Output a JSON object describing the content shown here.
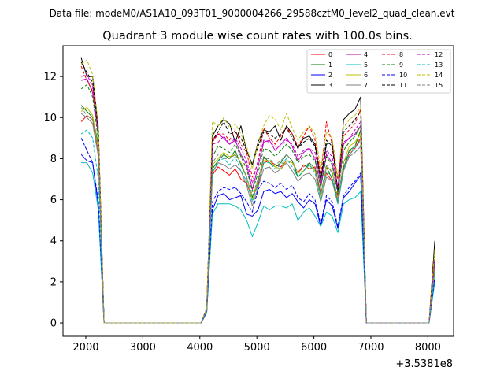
{
  "header": {
    "data_file": "Data file: modeM0/AS1A10_093T01_9000004266_29588cztM0_level2_quad_clean.evt"
  },
  "chart_data": {
    "type": "line",
    "title": "Quadrant 3 module wise count rates with 100.0s bins.",
    "xlabel": "",
    "ylabel": "",
    "x_offset_label": "+3.5381e8",
    "xlim": [
      1600,
      8450
    ],
    "ylim": [
      -0.65,
      13.5
    ],
    "xticks": [
      2000,
      3000,
      4000,
      5000,
      6000,
      7000,
      8000
    ],
    "yticks": [
      0,
      2,
      4,
      6,
      8,
      10,
      12
    ],
    "grid": false,
    "legend_placement": "top-right",
    "x": [
      1920,
      2020,
      2120,
      2220,
      2320,
      2420,
      2520,
      2620,
      2720,
      2820,
      2920,
      3020,
      3120,
      3220,
      3320,
      3420,
      3520,
      3620,
      3720,
      3820,
      3920,
      4020,
      4120,
      4220,
      4320,
      4420,
      4520,
      4620,
      4720,
      4820,
      4920,
      5020,
      5120,
      5220,
      5320,
      5420,
      5520,
      5620,
      5720,
      5820,
      5920,
      6020,
      6120,
      6220,
      6320,
      6420,
      6520,
      6620,
      6720,
      6820,
      6920,
      7020,
      7120,
      7220,
      7320,
      7420,
      7520,
      7620,
      7720,
      7820,
      7920,
      8020,
      8120
    ],
    "series": [
      {
        "name": "0",
        "color": "#ff0000",
        "dash": false,
        "values": [
          9.8,
          10.1,
          9.9,
          8.3,
          0,
          0,
          0,
          0,
          0,
          0,
          0,
          0,
          0,
          0,
          0,
          0,
          0,
          0,
          0,
          0,
          0,
          0,
          0.6,
          7.2,
          7.6,
          7.4,
          7.2,
          7.5,
          7.0,
          6.8,
          6.1,
          6.7,
          7.8,
          7.9,
          7.7,
          7.6,
          7.9,
          7.8,
          7.3,
          7.7,
          7.5,
          7.6,
          6.3,
          7.3,
          6.9,
          6.2,
          7.6,
          8.2,
          8.5,
          9.0,
          0,
          0,
          0,
          0,
          0,
          0,
          0,
          0,
          0,
          0,
          0,
          0,
          2.6
        ]
      },
      {
        "name": "1",
        "color": "#008000",
        "dash": false,
        "values": [
          10.6,
          10.3,
          10.0,
          8.7,
          0,
          0,
          0,
          0,
          0,
          0,
          0,
          0,
          0,
          0,
          0,
          0,
          0,
          0,
          0,
          0,
          0,
          0,
          0.6,
          7.5,
          7.9,
          8.2,
          8.0,
          8.4,
          7.7,
          7.1,
          6.1,
          6.9,
          8.1,
          7.8,
          7.6,
          7.8,
          8.2,
          7.9,
          7.1,
          7.4,
          7.8,
          7.5,
          6.2,
          7.6,
          7.0,
          5.9,
          7.5,
          8.4,
          8.6,
          9.4,
          0,
          0,
          0,
          0,
          0,
          0,
          0,
          0,
          0,
          0,
          0,
          0,
          2.8
        ]
      },
      {
        "name": "2",
        "color": "#0000ff",
        "dash": false,
        "values": [
          8.2,
          7.9,
          7.8,
          5.7,
          0,
          0,
          0,
          0,
          0,
          0,
          0,
          0,
          0,
          0,
          0,
          0,
          0,
          0,
          0,
          0,
          0,
          0,
          0.5,
          5.5,
          6.2,
          6.3,
          6.0,
          6.1,
          6.2,
          5.3,
          5.2,
          5.5,
          6.4,
          6.5,
          6.3,
          6.4,
          6.1,
          6.3,
          5.9,
          5.6,
          6.0,
          5.8,
          4.7,
          6.0,
          5.7,
          4.6,
          6.1,
          6.4,
          6.8,
          7.2,
          0,
          0,
          0,
          0,
          0,
          0,
          0,
          0,
          0,
          0,
          0,
          0,
          2.1
        ]
      },
      {
        "name": "3",
        "color": "#000000",
        "dash": false,
        "values": [
          12.9,
          12.0,
          12.0,
          9.5,
          0,
          0,
          0,
          0,
          0,
          0,
          0,
          0,
          0,
          0,
          0,
          0,
          0,
          0,
          0,
          0,
          0,
          0,
          0.7,
          9.1,
          9.6,
          9.9,
          9.7,
          8.8,
          9.6,
          8.4,
          7.7,
          8.8,
          9.4,
          9.3,
          9.6,
          8.9,
          9.6,
          9.2,
          8.5,
          9.0,
          9.1,
          8.7,
          6.9,
          8.7,
          8.8,
          6.4,
          9.9,
          10.2,
          10.4,
          11.0,
          0,
          0,
          0,
          0,
          0,
          0,
          0,
          0,
          0,
          0,
          0,
          0,
          4.0
        ]
      },
      {
        "name": "4",
        "color": "#bf00bf",
        "dash": false,
        "values": [
          11.8,
          11.9,
          11.2,
          9.2,
          0,
          0,
          0,
          0,
          0,
          0,
          0,
          0,
          0,
          0,
          0,
          0,
          0,
          0,
          0,
          0,
          0,
          0,
          0.7,
          8.9,
          9.2,
          9.0,
          8.7,
          8.9,
          8.2,
          7.7,
          6.5,
          7.6,
          8.8,
          8.9,
          8.4,
          8.7,
          9.0,
          8.6,
          7.9,
          8.3,
          8.5,
          8.0,
          6.6,
          8.2,
          7.8,
          6.4,
          8.7,
          9.0,
          9.2,
          9.6,
          0,
          0,
          0,
          0,
          0,
          0,
          0,
          0,
          0,
          0,
          0,
          0,
          3.0
        ]
      },
      {
        "name": "5",
        "color": "#00bfbf",
        "dash": false,
        "values": [
          7.8,
          7.8,
          7.3,
          5.5,
          0,
          0,
          0,
          0,
          0,
          0,
          0,
          0,
          0,
          0,
          0,
          0,
          0,
          0,
          0,
          0,
          0,
          0,
          0.5,
          5.3,
          5.8,
          5.8,
          5.8,
          5.7,
          5.5,
          5.0,
          4.2,
          4.9,
          5.7,
          5.5,
          5.7,
          5.7,
          5.6,
          5.8,
          5.0,
          5.4,
          5.6,
          5.2,
          4.7,
          5.4,
          5.2,
          4.4,
          5.8,
          6.0,
          6.1,
          6.4,
          0,
          0,
          0,
          0,
          0,
          0,
          0,
          0,
          0,
          0,
          0,
          0,
          2.0
        ]
      },
      {
        "name": "6",
        "color": "#bfbf00",
        "dash": false,
        "values": [
          10.3,
          10.5,
          10.1,
          8.4,
          0,
          0,
          0,
          0,
          0,
          0,
          0,
          0,
          0,
          0,
          0,
          0,
          0,
          0,
          0,
          0,
          0,
          0,
          0.6,
          7.7,
          8.0,
          8.3,
          8.1,
          8.2,
          7.8,
          7.1,
          6.0,
          7.0,
          7.9,
          7.9,
          7.6,
          7.5,
          7.9,
          7.8,
          7.3,
          7.4,
          7.7,
          7.4,
          6.1,
          7.6,
          7.4,
          6.0,
          7.8,
          8.6,
          8.8,
          9.2,
          0,
          0,
          0,
          0,
          0,
          0,
          0,
          0,
          0,
          0,
          0,
          0,
          2.7
        ]
      },
      {
        "name": "7",
        "color": "#808080",
        "dash": false,
        "values": [
          10.2,
          10.0,
          9.7,
          8.1,
          0,
          0,
          0,
          0,
          0,
          0,
          0,
          0,
          0,
          0,
          0,
          0,
          0,
          0,
          0,
          0,
          0,
          0,
          0.6,
          7.3,
          7.8,
          7.7,
          7.5,
          7.7,
          7.4,
          6.7,
          5.7,
          6.6,
          7.5,
          7.6,
          7.3,
          7.5,
          7.8,
          7.4,
          6.9,
          7.2,
          7.3,
          7.0,
          5.9,
          7.1,
          6.9,
          5.8,
          7.4,
          8.1,
          8.3,
          8.6,
          0,
          0,
          0,
          0,
          0,
          0,
          0,
          0,
          0,
          0,
          0,
          0,
          2.5
        ]
      },
      {
        "name": "8",
        "color": "#ff0000",
        "dash": true,
        "values": [
          12.5,
          11.8,
          11.3,
          9.3,
          0,
          0,
          0,
          0,
          0,
          0,
          0,
          0,
          0,
          0,
          0,
          0,
          0,
          0,
          0,
          0,
          0,
          0,
          0.7,
          8.8,
          9.2,
          9.2,
          8.9,
          9.4,
          8.7,
          8.3,
          7.1,
          7.8,
          9.5,
          9.0,
          8.7,
          9.1,
          9.5,
          9.2,
          8.6,
          9.1,
          9.6,
          8.9,
          7.2,
          9.8,
          8.7,
          7.0,
          9.1,
          9.4,
          9.7,
          10.4,
          0,
          0,
          0,
          0,
          0,
          0,
          0,
          0,
          0,
          0,
          0,
          0,
          3.3
        ]
      },
      {
        "name": "9",
        "color": "#008000",
        "dash": true,
        "values": [
          11.4,
          11.6,
          11.0,
          8.9,
          0,
          0,
          0,
          0,
          0,
          0,
          0,
          0,
          0,
          0,
          0,
          0,
          0,
          0,
          0,
          0,
          0,
          0,
          0.6,
          8.1,
          8.6,
          8.5,
          8.3,
          8.7,
          8.1,
          7.5,
          6.4,
          7.3,
          8.5,
          8.4,
          8.1,
          8.4,
          8.7,
          8.4,
          7.8,
          8.1,
          8.2,
          7.9,
          6.6,
          8.1,
          7.7,
          6.3,
          8.4,
          8.8,
          9.1,
          9.6,
          0,
          0,
          0,
          0,
          0,
          0,
          0,
          0,
          0,
          0,
          0,
          0,
          2.9
        ]
      },
      {
        "name": "10",
        "color": "#0000ff",
        "dash": true,
        "values": [
          9.0,
          8.4,
          7.8,
          5.9,
          0,
          0,
          0,
          0,
          0,
          0,
          0,
          0,
          0,
          0,
          0,
          0,
          0,
          0,
          0,
          0,
          0,
          0,
          0.5,
          5.9,
          6.4,
          6.6,
          6.5,
          6.6,
          6.3,
          5.9,
          5.4,
          6.5,
          6.9,
          6.8,
          6.6,
          6.8,
          6.5,
          6.7,
          6.1,
          5.9,
          6.3,
          6.0,
          4.8,
          6.2,
          5.9,
          4.7,
          6.2,
          6.6,
          6.9,
          7.3,
          0,
          0,
          0,
          0,
          0,
          0,
          0,
          0,
          0,
          0,
          0,
          0,
          2.2
        ]
      },
      {
        "name": "11",
        "color": "#000000",
        "dash": true,
        "values": [
          12.7,
          12.2,
          11.7,
          9.3,
          0,
          0,
          0,
          0,
          0,
          0,
          0,
          0,
          0,
          0,
          0,
          0,
          0,
          0,
          0,
          0,
          0,
          0,
          0.7,
          8.9,
          9.3,
          9.8,
          9.2,
          9.3,
          9.0,
          8.4,
          7.7,
          8.6,
          9.3,
          9.2,
          9.0,
          9.2,
          9.5,
          9.0,
          8.5,
          8.8,
          9.0,
          8.6,
          7.0,
          8.9,
          8.6,
          6.5,
          9.3,
          9.6,
          9.9,
          10.3,
          0,
          0,
          0,
          0,
          0,
          0,
          0,
          0,
          0,
          0,
          0,
          0,
          3.5
        ]
      },
      {
        "name": "12",
        "color": "#bf00bf",
        "dash": true,
        "values": [
          12.0,
          12.1,
          11.5,
          9.2,
          0,
          0,
          0,
          0,
          0,
          0,
          0,
          0,
          0,
          0,
          0,
          0,
          0,
          0,
          0,
          0,
          0,
          0,
          0.7,
          8.7,
          8.8,
          9.1,
          8.7,
          9.0,
          8.5,
          7.9,
          6.8,
          7.9,
          8.9,
          8.8,
          8.6,
          8.6,
          8.9,
          8.7,
          8.1,
          8.4,
          8.5,
          8.3,
          6.8,
          8.4,
          8.1,
          6.6,
          8.8,
          9.0,
          9.4,
          9.8,
          0,
          0,
          0,
          0,
          0,
          0,
          0,
          0,
          0,
          0,
          0,
          0,
          3.1
        ]
      },
      {
        "name": "13",
        "color": "#00bfbf",
        "dash": true,
        "values": [
          9.2,
          9.4,
          9.0,
          7.0,
          0,
          0,
          0,
          0,
          0,
          0,
          0,
          0,
          0,
          0,
          0,
          0,
          0,
          0,
          0,
          0,
          0,
          0,
          0.6,
          7.3,
          7.9,
          8.0,
          7.7,
          8.1,
          7.4,
          6.9,
          5.9,
          6.8,
          7.8,
          7.8,
          7.5,
          7.7,
          8.0,
          7.6,
          7.1,
          7.4,
          7.7,
          7.3,
          6.0,
          7.4,
          7.1,
          5.8,
          7.5,
          8.2,
          8.5,
          8.9,
          0,
          0,
          0,
          0,
          0,
          0,
          0,
          0,
          0,
          0,
          0,
          0,
          2.5
        ]
      },
      {
        "name": "14",
        "color": "#bfbf00",
        "dash": true,
        "values": [
          12.6,
          12.8,
          12.1,
          9.6,
          0,
          0,
          0,
          0,
          0,
          0,
          0,
          0,
          0,
          0,
          0,
          0,
          0,
          0,
          0,
          0,
          0,
          0,
          0.7,
          9.8,
          9.6,
          10.0,
          9.5,
          9.7,
          9.2,
          8.6,
          7.5,
          8.8,
          9.6,
          10.1,
          9.9,
          9.4,
          10.2,
          9.5,
          8.9,
          9.3,
          9.6,
          9.2,
          7.5,
          9.3,
          9.0,
          7.1,
          9.5,
          9.9,
          10.1,
          10.5,
          0,
          0,
          0,
          0,
          0,
          0,
          0,
          0,
          0,
          0,
          0,
          0,
          3.6
        ]
      },
      {
        "name": "15",
        "color": "#808080",
        "dash": true,
        "values": [
          10.5,
          10.1,
          9.9,
          8.4,
          0,
          0,
          0,
          0,
          0,
          0,
          0,
          0,
          0,
          0,
          0,
          0,
          0,
          0,
          0,
          0,
          0,
          0,
          0.6,
          7.8,
          8.2,
          8.0,
          8.0,
          8.2,
          7.8,
          7.1,
          6.2,
          7.0,
          8.0,
          8.0,
          7.7,
          7.9,
          8.2,
          7.9,
          7.3,
          7.6,
          7.8,
          7.5,
          6.2,
          7.7,
          7.3,
          6.0,
          7.8,
          8.3,
          8.6,
          9.1,
          0,
          0,
          0,
          0,
          0,
          0,
          0,
          0,
          0,
          0,
          0,
          0,
          2.7
        ]
      }
    ]
  }
}
